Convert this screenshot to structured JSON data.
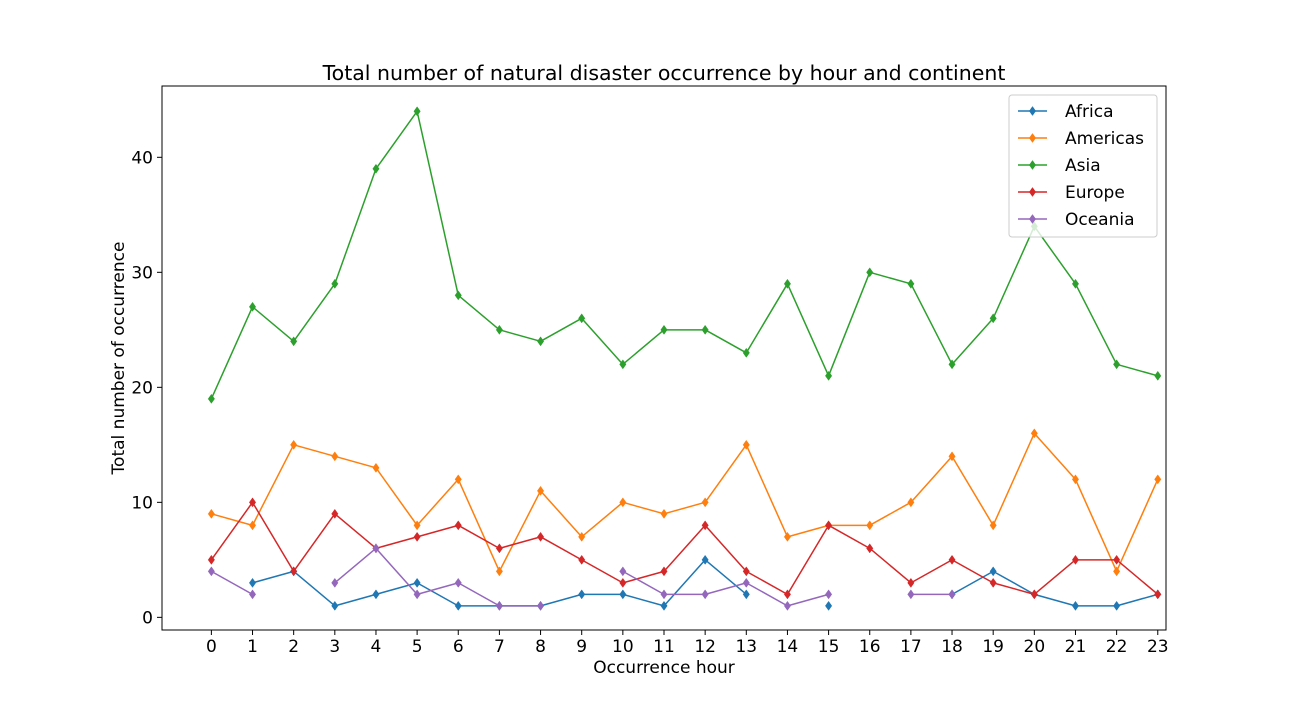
{
  "chart_data": {
    "type": "line",
    "title": "Total number of natural disaster occurrence by hour and continent",
    "xlabel": "Occurrence hour",
    "ylabel": "Total number of occurrence",
    "x": [
      0,
      1,
      2,
      3,
      4,
      5,
      6,
      7,
      8,
      9,
      10,
      11,
      12,
      13,
      14,
      15,
      16,
      17,
      18,
      19,
      20,
      21,
      22,
      23
    ],
    "x_tick_labels": [
      "0",
      "1",
      "2",
      "3",
      "4",
      "5",
      "6",
      "7",
      "8",
      "9",
      "10",
      "11",
      "12",
      "13",
      "14",
      "15",
      "16",
      "17",
      "18",
      "19",
      "20",
      "21",
      "22",
      "23"
    ],
    "y_ticks": [
      0,
      10,
      20,
      30,
      40
    ],
    "y_tick_labels": [
      "0",
      "10",
      "20",
      "30",
      "40"
    ],
    "xlim": [
      -1.2,
      23.2
    ],
    "ylim": [
      -1.1,
      46.2
    ],
    "marker": "diamond",
    "grid": false,
    "legend_position": "top-right",
    "series": [
      {
        "name": "Africa",
        "color": "#1f77b4",
        "values": [
          null,
          3,
          4,
          1,
          2,
          3,
          1,
          1,
          1,
          2,
          2,
          1,
          5,
          2,
          null,
          1,
          null,
          null,
          2,
          4,
          2,
          1,
          1,
          2
        ]
      },
      {
        "name": "Americas",
        "color": "#ff7f0e",
        "values": [
          9,
          8,
          15,
          14,
          13,
          8,
          12,
          4,
          11,
          7,
          10,
          9,
          10,
          15,
          7,
          8,
          8,
          10,
          14,
          8,
          16,
          12,
          4,
          12
        ]
      },
      {
        "name": "Asia",
        "color": "#2ca02c",
        "values": [
          19,
          27,
          24,
          29,
          39,
          44,
          28,
          25,
          24,
          26,
          22,
          25,
          25,
          23,
          29,
          21,
          30,
          29,
          22,
          26,
          34,
          29,
          22,
          21
        ]
      },
      {
        "name": "Europe",
        "color": "#d62728",
        "values": [
          5,
          10,
          4,
          9,
          6,
          7,
          8,
          6,
          7,
          5,
          3,
          4,
          8,
          4,
          2,
          8,
          6,
          3,
          5,
          3,
          2,
          5,
          5,
          2
        ]
      },
      {
        "name": "Oceania",
        "color": "#9467bd",
        "values": [
          4,
          2,
          null,
          3,
          6,
          2,
          3,
          1,
          1,
          null,
          4,
          2,
          2,
          3,
          1,
          2,
          null,
          2,
          2,
          null,
          null,
          null,
          null,
          null
        ]
      }
    ]
  }
}
